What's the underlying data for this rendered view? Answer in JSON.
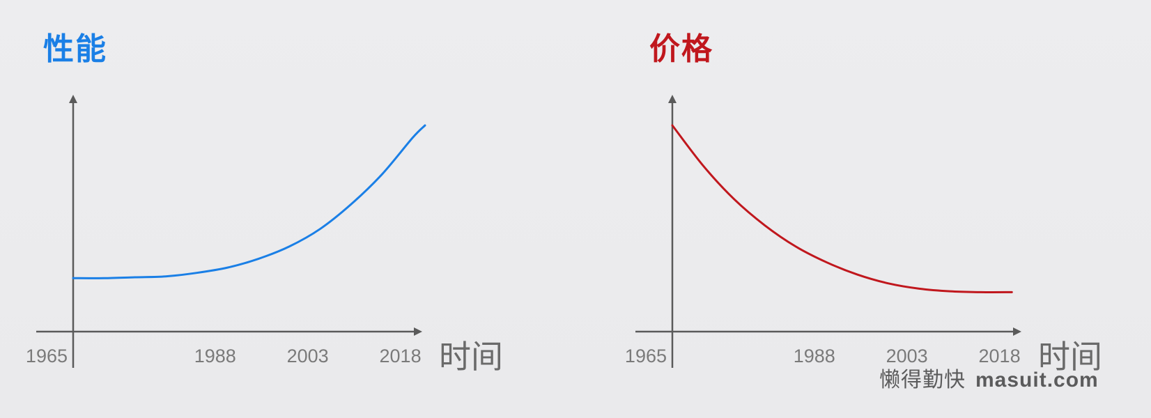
{
  "colors": {
    "performance": "#1a7fe6",
    "price": "#c0171d",
    "axis": "#5a5a5a",
    "background": "#ececee"
  },
  "chart_data": [
    {
      "type": "line",
      "title": "性能",
      "xlabel": "时间",
      "ylabel": "",
      "x_ticks": [
        "1965",
        "1988",
        "2003",
        "2018"
      ],
      "xlim": [
        1965,
        2022
      ],
      "ylim": [
        0,
        100
      ],
      "y_ticks_visible": false,
      "grid": false,
      "series": [
        {
          "color": "#1a7fe6",
          "x": [
            1965,
            1970,
            1975,
            1980,
            1985,
            1990,
            1995,
            2000,
            2005,
            2010,
            2015,
            2020,
            2022
          ],
          "y": [
            13,
            13,
            13.5,
            14,
            16,
            19,
            24,
            31,
            41,
            55,
            72,
            93,
            100
          ]
        }
      ]
    },
    {
      "type": "line",
      "title": "价格",
      "xlabel": "时间",
      "ylabel": "",
      "x_ticks": [
        "1965",
        "1988",
        "2003",
        "2018"
      ],
      "xlim": [
        1965,
        2022
      ],
      "ylim": [
        0,
        100
      ],
      "y_ticks_visible": false,
      "grid": false,
      "series": [
        {
          "color": "#c0171d",
          "x": [
            1965,
            1970,
            1975,
            1980,
            1985,
            1990,
            1995,
            2000,
            2005,
            2010,
            2015,
            2020
          ],
          "y": [
            100,
            77,
            58,
            43,
            31,
            22,
            15,
            10,
            7,
            5.5,
            5,
            5
          ]
        }
      ]
    }
  ],
  "watermark": {
    "chinese": "懒得勤快",
    "latin": "masuit.com"
  }
}
